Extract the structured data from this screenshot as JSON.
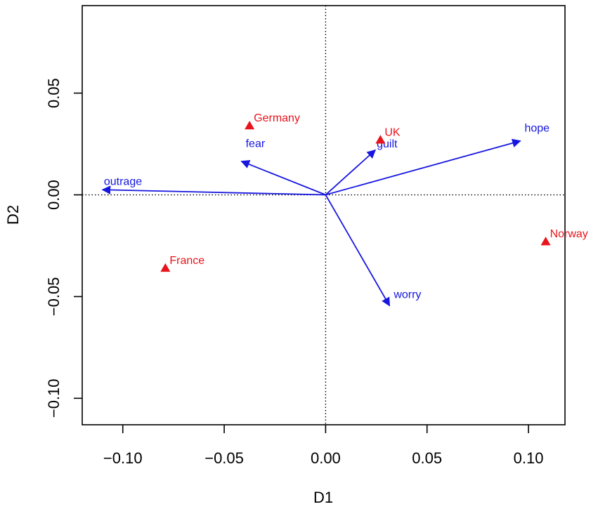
{
  "chart_data": {
    "type": "scatter",
    "subtype": "biplot",
    "title": "",
    "xlabel": "D1",
    "ylabel": "D2",
    "xlim": [
      -0.12,
      0.118
    ],
    "ylim": [
      -0.113,
      0.093
    ],
    "xticks": [
      -0.1,
      -0.05,
      0.0,
      0.05,
      0.1
    ],
    "xtick_labels": [
      "−0.10",
      "−0.05",
      "0.00",
      "0.05",
      "0.10"
    ],
    "yticks": [
      -0.1,
      -0.05,
      0.0,
      0.05
    ],
    "ytick_labels": [
      "−0.10",
      "−0.05",
      "0.00",
      "0.05"
    ],
    "reference_lines": {
      "x": 0,
      "y": 0,
      "style": "dotted"
    },
    "points": [
      {
        "label": "Germany",
        "x": -0.0375,
        "y": 0.034
      },
      {
        "label": "UK",
        "x": 0.027,
        "y": 0.027
      },
      {
        "label": "France",
        "x": -0.079,
        "y": -0.036
      },
      {
        "label": "Norway",
        "x": 0.1085,
        "y": -0.023
      }
    ],
    "vectors": [
      {
        "label": "outrage",
        "x": -0.11,
        "y": 0.0025
      },
      {
        "label": "fear",
        "x": -0.0415,
        "y": 0.0165
      },
      {
        "label": "guilt",
        "x": 0.0245,
        "y": 0.022
      },
      {
        "label": "hope",
        "x": 0.096,
        "y": 0.0265
      },
      {
        "label": "worry",
        "x": 0.0315,
        "y": -0.0545
      }
    ],
    "colors": {
      "points": "#e8141c",
      "vectors": "#1616e0",
      "axes": "#000000"
    }
  }
}
